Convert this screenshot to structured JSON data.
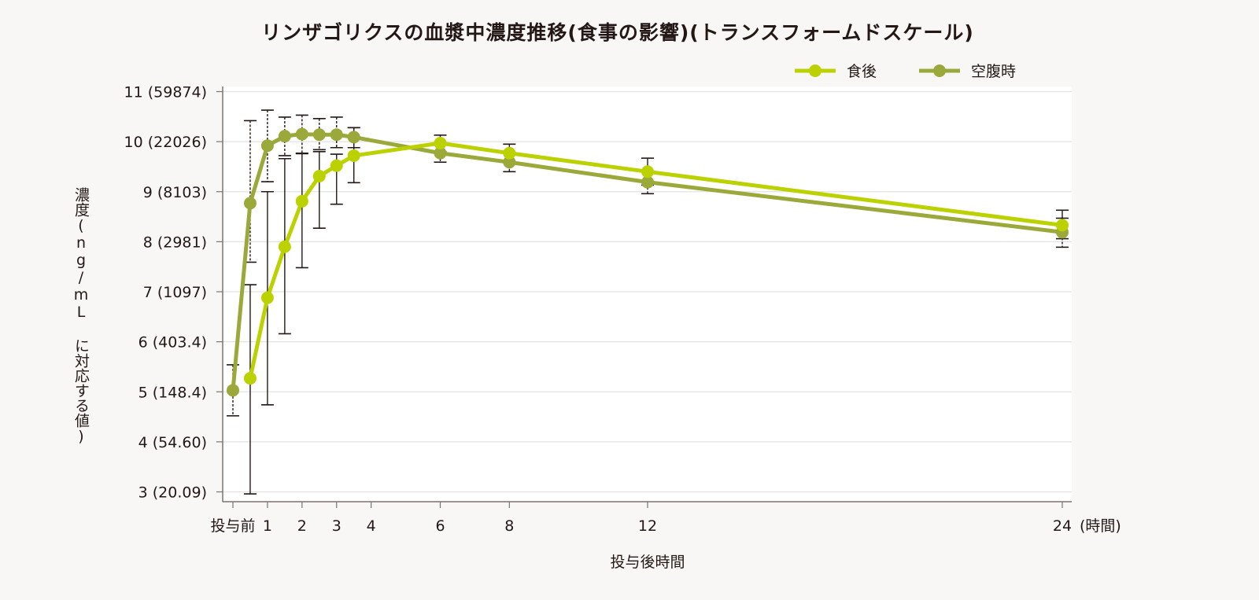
{
  "chart_data": {
    "type": "line",
    "title": "リンザゴリクスの血漿中濃度推移(食事の影響)(トランスフォームドスケール)",
    "xlabel": "投与後時間",
    "ylabel": "濃度(ng/mL に対応する値)",
    "x_unit_label": "(時間)",
    "x_ticks": [
      {
        "value": 0,
        "label": "投与前"
      },
      {
        "value": 1,
        "label": "1"
      },
      {
        "value": 2,
        "label": "2"
      },
      {
        "value": 3,
        "label": "3"
      },
      {
        "value": 4,
        "label": "4"
      },
      {
        "value": 6,
        "label": "6"
      },
      {
        "value": 8,
        "label": "8"
      },
      {
        "value": 12,
        "label": "12"
      },
      {
        "value": 24,
        "label": "24"
      }
    ],
    "y_ticks": [
      {
        "value": 11,
        "label": "11 (59874)"
      },
      {
        "value": 10,
        "label": "10 (22026)"
      },
      {
        "value": 9,
        "label": "9 (8103)"
      },
      {
        "value": 8,
        "label": "8 (2981)"
      },
      {
        "value": 7,
        "label": "7 (1097)"
      },
      {
        "value": 6,
        "label": "6 (403.4)"
      },
      {
        "value": 5,
        "label": "5 (148.4)"
      },
      {
        "value": 4,
        "label": "4 (54.60)"
      },
      {
        "value": 3,
        "label": "3 (20.09)"
      }
    ],
    "xlim": [
      0,
      24
    ],
    "ylim": [
      3,
      11
    ],
    "grid": true,
    "legend_position": "top-right",
    "series": [
      {
        "name": "食後",
        "color": "#bcd200",
        "error_style": "solid",
        "x": [
          0.5,
          1,
          1.5,
          2,
          2.5,
          3,
          3.5,
          6,
          8,
          12,
          24
        ],
        "y": [
          5.27,
          6.88,
          7.9,
          8.81,
          9.31,
          9.52,
          9.72,
          9.97,
          9.77,
          9.4,
          8.33
        ],
        "upper": [
          7.14,
          9.0,
          9.66,
          9.76,
          9.8,
          9.75,
          10.28,
          10.13,
          9.95,
          9.67,
          8.63
        ],
        "lower": [
          2.96,
          4.74,
          6.16,
          7.48,
          8.27,
          8.75,
          9.18,
          9.8,
          9.6,
          9.13,
          8.06
        ]
      },
      {
        "name": "空腹時",
        "color": "#9aa93a",
        "error_style": "dotted",
        "x": [
          0,
          0.5,
          1,
          1.5,
          2,
          2.5,
          3,
          3.5,
          6,
          8,
          12,
          24
        ],
        "y": [
          5.03,
          8.77,
          9.92,
          10.11,
          10.15,
          10.14,
          10.14,
          10.09,
          9.77,
          9.59,
          9.19,
          8.19
        ],
        "upper": [
          5.54,
          10.42,
          10.63,
          10.49,
          10.53,
          10.46,
          10.49,
          10.28,
          9.97,
          9.77,
          9.4,
          8.47
        ],
        "lower": [
          4.52,
          7.59,
          9.2,
          9.72,
          9.77,
          9.84,
          9.88,
          9.88,
          9.59,
          9.4,
          8.96,
          7.89
        ]
      }
    ]
  }
}
